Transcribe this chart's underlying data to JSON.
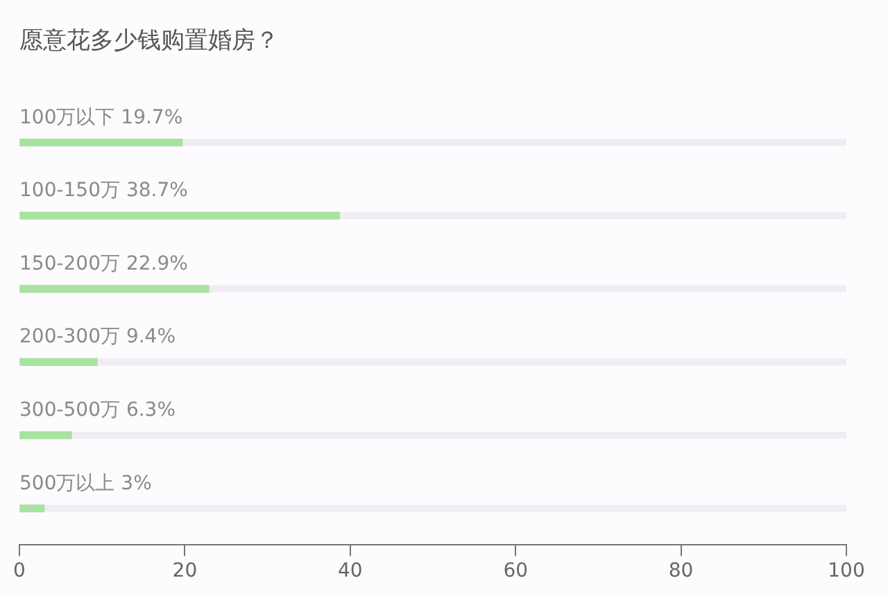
{
  "chart_data": {
    "type": "bar",
    "orientation": "horizontal",
    "title": "愿意花多少钱购置婚房？",
    "categories": [
      "100万以下",
      "100-150万",
      "150-200万",
      "200-300万",
      "300-500万",
      "500万以上"
    ],
    "values": [
      19.7,
      38.7,
      22.9,
      9.4,
      6.3,
      3
    ],
    "value_labels": [
      "19.7%",
      "38.7%",
      "22.9%",
      "9.4%",
      "6.3%",
      "3%"
    ],
    "color": "#a8e2a0",
    "xlim": [
      0,
      100
    ],
    "xticks": [
      0,
      20,
      40,
      60,
      80,
      100
    ],
    "grid": false,
    "legend": false
  }
}
